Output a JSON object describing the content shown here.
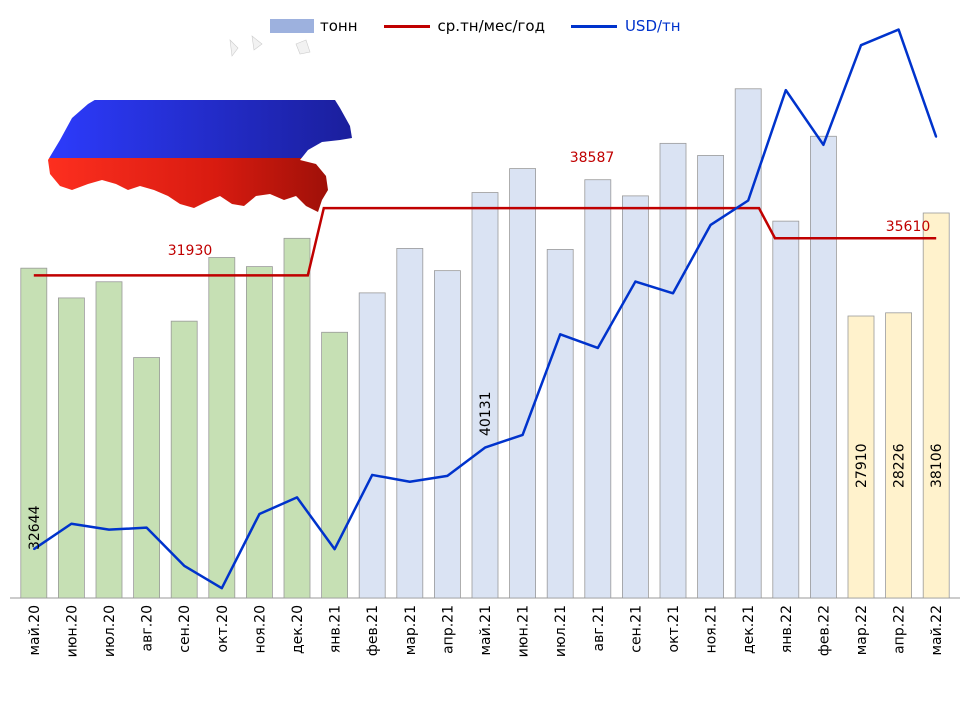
{
  "chart_data": {
    "type": "bar",
    "categories": [
      "май.20",
      "июн.20",
      "июл.20",
      "авг.20",
      "сен.20",
      "окт.20",
      "ноя.20",
      "дек.20",
      "янв.21",
      "фев.21",
      "мар.21",
      "апр.21",
      "май.21",
      "июн.21",
      "июл.21",
      "авг.21",
      "сен.21",
      "окт.21",
      "ноя.21",
      "дек.21",
      "янв.22",
      "фев.22",
      "мар.22",
      "апр.22",
      "май.22"
    ],
    "series": [
      {
        "name": "тонн",
        "type": "bar",
        "values": [
          32644,
          29700,
          31300,
          23800,
          27400,
          33700,
          32800,
          35600,
          26300,
          30200,
          34600,
          32400,
          40131,
          42500,
          34500,
          41400,
          39800,
          45000,
          43800,
          50400,
          37300,
          45700,
          27910,
          28226,
          38106
        ],
        "colors": [
          "#c6e0b4",
          "#c6e0b4",
          "#c6e0b4",
          "#c6e0b4",
          "#c6e0b4",
          "#c6e0b4",
          "#c6e0b4",
          "#c6e0b4",
          "#c6e0b4",
          "#dae3f3",
          "#dae3f3",
          "#dae3f3",
          "#dae3f3",
          "#dae3f3",
          "#dae3f3",
          "#dae3f3",
          "#dae3f3",
          "#dae3f3",
          "#dae3f3",
          "#dae3f3",
          "#dae3f3",
          "#dae3f3",
          "#fff2cc",
          "#fff2cc",
          "#fff2cc"
        ]
      },
      {
        "name": "ср.тн/мес/год",
        "type": "line",
        "color": "#c00000",
        "values": [
          31930,
          31930,
          31930,
          31930,
          31930,
          31930,
          31930,
          31930,
          38587,
          38587,
          38587,
          38587,
          38587,
          38587,
          38587,
          38587,
          38587,
          38587,
          38587,
          38587,
          35610,
          35610,
          35610,
          35610,
          35610
        ]
      },
      {
        "name": "USD/тн",
        "type": "line",
        "color": "#0033cc",
        "values": [
          5.0,
          7.6,
          7.0,
          7.2,
          3.3,
          1.0,
          8.6,
          10.3,
          5.0,
          12.6,
          11.9,
          12.5,
          15.4,
          16.7,
          27.0,
          25.6,
          32.4,
          31.2,
          38.2,
          40.7,
          52.0,
          46.4,
          56.6,
          58.2,
          47.2
        ]
      }
    ],
    "data_labels": [
      {
        "series": "тонн",
        "index": 0,
        "text": "32644"
      },
      {
        "series": "тонн",
        "index": 12,
        "text": "40131"
      },
      {
        "series": "тонн",
        "index": 22,
        "text": "27910"
      },
      {
        "series": "тонн",
        "index": 23,
        "text": "28226"
      },
      {
        "series": "тонн",
        "index": 24,
        "text": "38106"
      },
      {
        "series": "ср.тн/мес/год",
        "index": 4,
        "text": "31930"
      },
      {
        "series": "ср.тн/мес/год",
        "index": 15,
        "text": "38587"
      },
      {
        "series": "ср.тн/мес/год",
        "index": 23,
        "text": "35610"
      }
    ],
    "ylim_tonnes": [
      0,
      58000
    ],
    "ylim_usd": [
      0,
      60
    ],
    "grid": false,
    "legend_position": "top-center"
  },
  "legend": {
    "bar_label": "тонн",
    "avg_label": "ср.тн/мес/год",
    "usd_label": "USD/тн",
    "avg_color": "#c00000",
    "usd_color": "#0033cc"
  },
  "decoration": {
    "flag_map": "russia-map-flag-image"
  }
}
